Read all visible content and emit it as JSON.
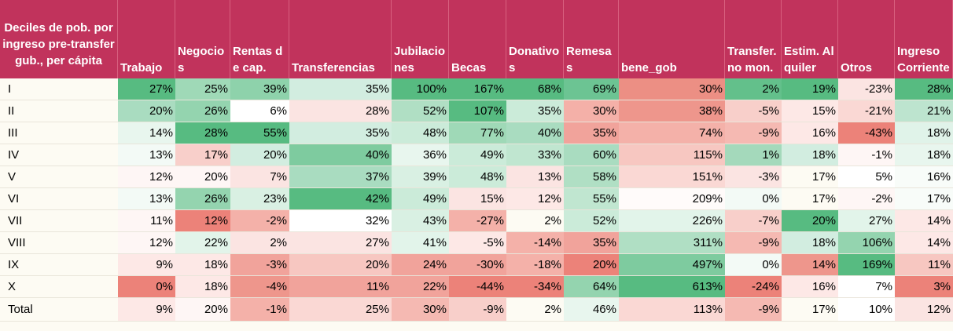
{
  "columns": [
    "Deciles de pob. por ingreso pre-transfer gub., per cápita",
    "Trabajo",
    "Negocios",
    "Rentas de cap.",
    "Transferencias",
    "Jubilaciones",
    "Becas",
    "Donativos",
    "Remesas",
    "bene_gob",
    "Transfer. no mon.",
    "Estim. Alquiler",
    "Otros",
    "Ingreso Corriente"
  ],
  "rows": [
    {
      "label": "I",
      "values": [
        "27%",
        "25%",
        "39%",
        "35%",
        "100%",
        "167%",
        "68%",
        "69%",
        "30%",
        "2%",
        "19%",
        "-23%",
        "28%"
      ]
    },
    {
      "label": "II",
      "values": [
        "20%",
        "26%",
        "6%",
        "28%",
        "52%",
        "107%",
        "35%",
        "30%",
        "38%",
        "-5%",
        "15%",
        "-21%",
        "21%"
      ]
    },
    {
      "label": "III",
      "values": [
        "14%",
        "28%",
        "55%",
        "35%",
        "48%",
        "77%",
        "40%",
        "35%",
        "74%",
        "-9%",
        "16%",
        "-43%",
        "18%"
      ]
    },
    {
      "label": "IV",
      "values": [
        "13%",
        "17%",
        "20%",
        "40%",
        "36%",
        "49%",
        "33%",
        "60%",
        "115%",
        "1%",
        "18%",
        "-1%",
        "18%"
      ]
    },
    {
      "label": "V",
      "values": [
        "12%",
        "20%",
        "7%",
        "37%",
        "39%",
        "48%",
        "13%",
        "58%",
        "151%",
        "-3%",
        "17%",
        "5%",
        "16%"
      ]
    },
    {
      "label": "VI",
      "values": [
        "13%",
        "26%",
        "23%",
        "42%",
        "49%",
        "15%",
        "12%",
        "55%",
        "209%",
        "0%",
        "17%",
        "-2%",
        "17%"
      ]
    },
    {
      "label": "VII",
      "values": [
        "11%",
        "12%",
        "-2%",
        "32%",
        "43%",
        "-27%",
        "2%",
        "52%",
        "226%",
        "-7%",
        "20%",
        "27%",
        "14%"
      ]
    },
    {
      "label": "VIII",
      "values": [
        "12%",
        "22%",
        "2%",
        "27%",
        "41%",
        "-5%",
        "-14%",
        "35%",
        "311%",
        "-9%",
        "18%",
        "106%",
        "14%"
      ]
    },
    {
      "label": "IX",
      "values": [
        "9%",
        "18%",
        "-3%",
        "20%",
        "24%",
        "-30%",
        "-18%",
        "20%",
        "497%",
        "0%",
        "14%",
        "169%",
        "11%"
      ]
    },
    {
      "label": "X",
      "values": [
        "0%",
        "18%",
        "-4%",
        "11%",
        "22%",
        "-44%",
        "-34%",
        "64%",
        "613%",
        "-24%",
        "16%",
        "7%",
        "3%"
      ]
    },
    {
      "label": "Total",
      "values": [
        "9%",
        "20%",
        "-1%",
        "25%",
        "30%",
        "-9%",
        "2%",
        "46%",
        "113%",
        "-9%",
        "17%",
        "10%",
        "12%"
      ]
    }
  ],
  "colors": {
    "header_bg": "#c1335c",
    "header_text": "#ffffff",
    "page_bg": "#fdfbf3",
    "cells": [
      [
        "#57bb81",
        "#9fd9b7",
        "#8ed2ab",
        "#d2ede0",
        "#57bb81",
        "#57bb81",
        "#57bb81",
        "#6cc493",
        "#ec8f84",
        "#63c08b",
        "#57bb81",
        "#fbe4e2",
        "#57bb81"
      ],
      [
        "#a9dcc0",
        "#94d4af",
        "#ffffff",
        "#fbe4e2",
        "#b0dfc4",
        "#57bb81",
        "#cbebd9",
        "#f4b0a8",
        "#ee968c",
        "#f8cfca",
        "#fde8e6",
        "#fad8d4",
        "#bde4cf"
      ],
      [
        "#e8f6ee",
        "#57bb81",
        "#57bb81",
        "#d2ede0",
        "#cbebd9",
        "#9fd9b7",
        "#a9dcc0",
        "#f1a39b",
        "#f4b1a9",
        "#f5b9b2",
        "#fde8e6",
        "#ec8279",
        "#e0f3e9"
      ],
      [
        "#f3faf6",
        "#f8cfca",
        "#d2ede0",
        "#7ecb9f",
        "#e8f6ee",
        "#cbebd9",
        "#c0e6d0",
        "#a9dcc0",
        "#f7c7c1",
        "#a4d9bb",
        "#d2ede0",
        "#fef6f5",
        "#e8f6ee"
      ],
      [
        "#fef6f5",
        "#fef6f5",
        "#fbe4e2",
        "#a9dcc0",
        "#d9f0e3",
        "#cbebd9",
        "#fbe4e2",
        "#b0dfc4",
        "#fad8d4",
        "#fbe4e2",
        "#fdfbf3",
        "#ffffff",
        "#f8fcf9"
      ],
      [
        "#f3faf6",
        "#94d4af",
        "#d9f0e3",
        "#57bb81",
        "#cbebd9",
        "#fbe4e2",
        "#fde8e6",
        "#c0e6d0",
        "#fffbfa",
        "#f3faf6",
        "#fdfbf3",
        "#fef6f5",
        "#f8fcf9"
      ],
      [
        "#fef6f5",
        "#ec8279",
        "#f4b1a9",
        "#ffffff",
        "#d9f0e3",
        "#f4b1a9",
        "#fdfbf3",
        "#cbebd9",
        "#e2f4ea",
        "#f8cfca",
        "#57bb81",
        "#e2f4ea",
        "#fde8e6"
      ],
      [
        "#fef6f5",
        "#e2f4ea",
        "#fbe4e2",
        "#fbe4e2",
        "#e2f4ea",
        "#fde8e6",
        "#f4b1a9",
        "#f1a39b",
        "#b0dfc4",
        "#f5b9b2",
        "#d2ede0",
        "#94d4af",
        "#fde8e6"
      ],
      [
        "#fde8e6",
        "#fde8e6",
        "#f1a39b",
        "#f7c7c1",
        "#f1a39b",
        "#f1a39b",
        "#f4b1a9",
        "#ec8279",
        "#7ecb9f",
        "#f3faf6",
        "#ee968c",
        "#57bb81",
        "#f7c7c1"
      ],
      [
        "#ec8279",
        "#fde8e6",
        "#ee968c",
        "#f1a39b",
        "#f1a39b",
        "#ec8279",
        "#ec8279",
        "#94d4af",
        "#57bb81",
        "#ec8279",
        "#fde8e6",
        "#ffffff",
        "#ec8279"
      ],
      [
        "#fde8e6",
        "#fef6f5",
        "#f4b1a9",
        "#fad8d4",
        "#f5b9b2",
        "#f8cfca",
        "#fdfbf3",
        "#e8f6ee",
        "#fad8d4",
        "#f5b9b2",
        "#fdfbf3",
        "#ffffff",
        "#fbe4e2"
      ]
    ]
  }
}
